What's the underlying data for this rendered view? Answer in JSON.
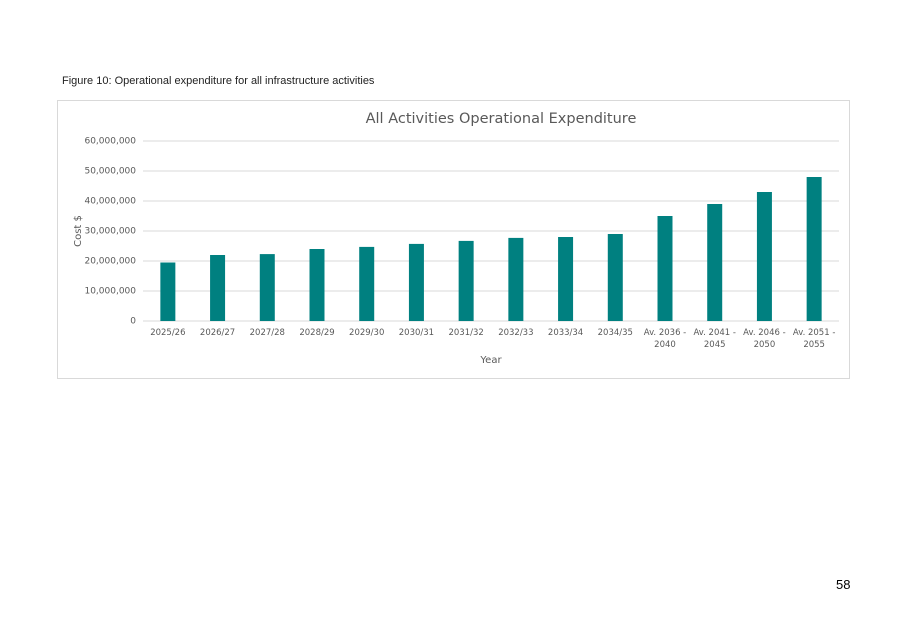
{
  "caption": "Figure 10: Operational expenditure for all infrastructure activities",
  "page_number": "58",
  "chart_data": {
    "type": "bar",
    "title": "All Activities Operational Expenditure",
    "x_label": "Year",
    "y_label": "Cost $",
    "categories": [
      "2025/26",
      "2026/27",
      "2027/28",
      "2028/29",
      "2029/30",
      "2030/31",
      "2031/32",
      "2032/33",
      "2033/34",
      "2034/35",
      "Av. 2036 - 2040",
      "Av. 2041 - 2045",
      "Av. 2046 - 2050",
      "Av. 2051 - 2055"
    ],
    "values": [
      19500000,
      22000000,
      22300000,
      24000000,
      24700000,
      25700000,
      26700000,
      27700000,
      28000000,
      29000000,
      35000000,
      39000000,
      43000000,
      48000000
    ],
    "color": "#008080",
    "ylim": [
      0,
      60000000
    ],
    "yticks": [
      0,
      {
        "value": 10000000,
        "label": "10,000,000"
      },
      {
        "value": 20000000,
        "label": "20,000,000"
      },
      {
        "value": 30000000,
        "label": "30,000,000"
      },
      {
        "value": 40000000,
        "label": "40,000,000"
      },
      {
        "value": 50000000,
        "label": "50,000,000"
      },
      {
        "value": 60000000,
        "label": "60,000,000"
      }
    ],
    "grid": true
  }
}
